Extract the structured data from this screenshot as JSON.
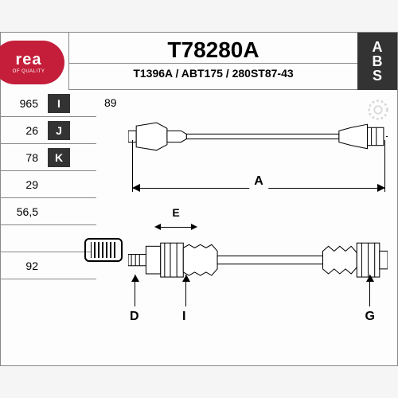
{
  "logo": {
    "brand": "rea",
    "tagline": "OF QUALITY"
  },
  "title": {
    "main": "T78280A",
    "sub": "T1396A / ABT175 / 280ST87-43"
  },
  "abs": {
    "a": "A",
    "b": "B",
    "s": "S"
  },
  "specs": [
    {
      "val": "965",
      "key": "I"
    },
    {
      "val": "26",
      "key": "J"
    },
    {
      "val": "78",
      "key": "K"
    },
    {
      "val": "29",
      "key": ""
    },
    {
      "val": "56,5",
      "key": ""
    },
    {
      "val": "",
      "key": ""
    },
    {
      "val": "92",
      "key": ""
    }
  ],
  "extra": {
    "val89": "89"
  },
  "dims": {
    "A": "A",
    "E": "E",
    "D": "D",
    "I": "I",
    "G": "G"
  },
  "colors": {
    "brand": "#c41e3a",
    "dark": "#333333",
    "line": "#888888",
    "bg": "#fdfdfd"
  }
}
